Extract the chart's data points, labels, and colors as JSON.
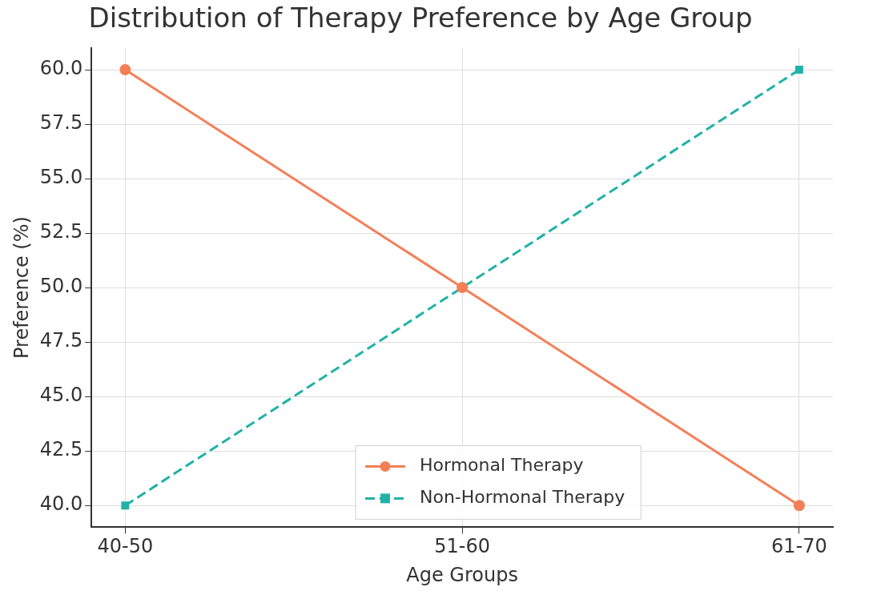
{
  "chart_data": {
    "type": "line",
    "title": "Distribution of Therapy Preference by Age Group",
    "xlabel": "Age Groups",
    "ylabel": "Preference (%)",
    "categories": [
      "40-50",
      "51-60",
      "61-70"
    ],
    "series": [
      {
        "name": "Hormonal Therapy",
        "color": "#f47f57",
        "values": [
          60,
          50,
          40
        ],
        "marker": "circle",
        "line_style": "solid"
      },
      {
        "name": "Non-Hormonal Therapy",
        "color": "#20b2a6",
        "values": [
          40,
          50,
          60
        ],
        "marker": "square",
        "line_style": "dashed"
      }
    ],
    "ylim": [
      39,
      61
    ],
    "yticks": [
      {
        "value": 40,
        "label": "40.0"
      },
      {
        "value": 42.5,
        "label": "42.5"
      },
      {
        "value": 45,
        "label": "45.0"
      },
      {
        "value": 47.5,
        "label": "47.5"
      },
      {
        "value": 50,
        "label": "50.0"
      },
      {
        "value": 52.5,
        "label": "52.5"
      },
      {
        "value": 55,
        "label": "55.0"
      },
      {
        "value": 57.5,
        "label": "57.5"
      },
      {
        "value": 60,
        "label": "60.0"
      }
    ],
    "grid": true,
    "legend": "bottom"
  }
}
